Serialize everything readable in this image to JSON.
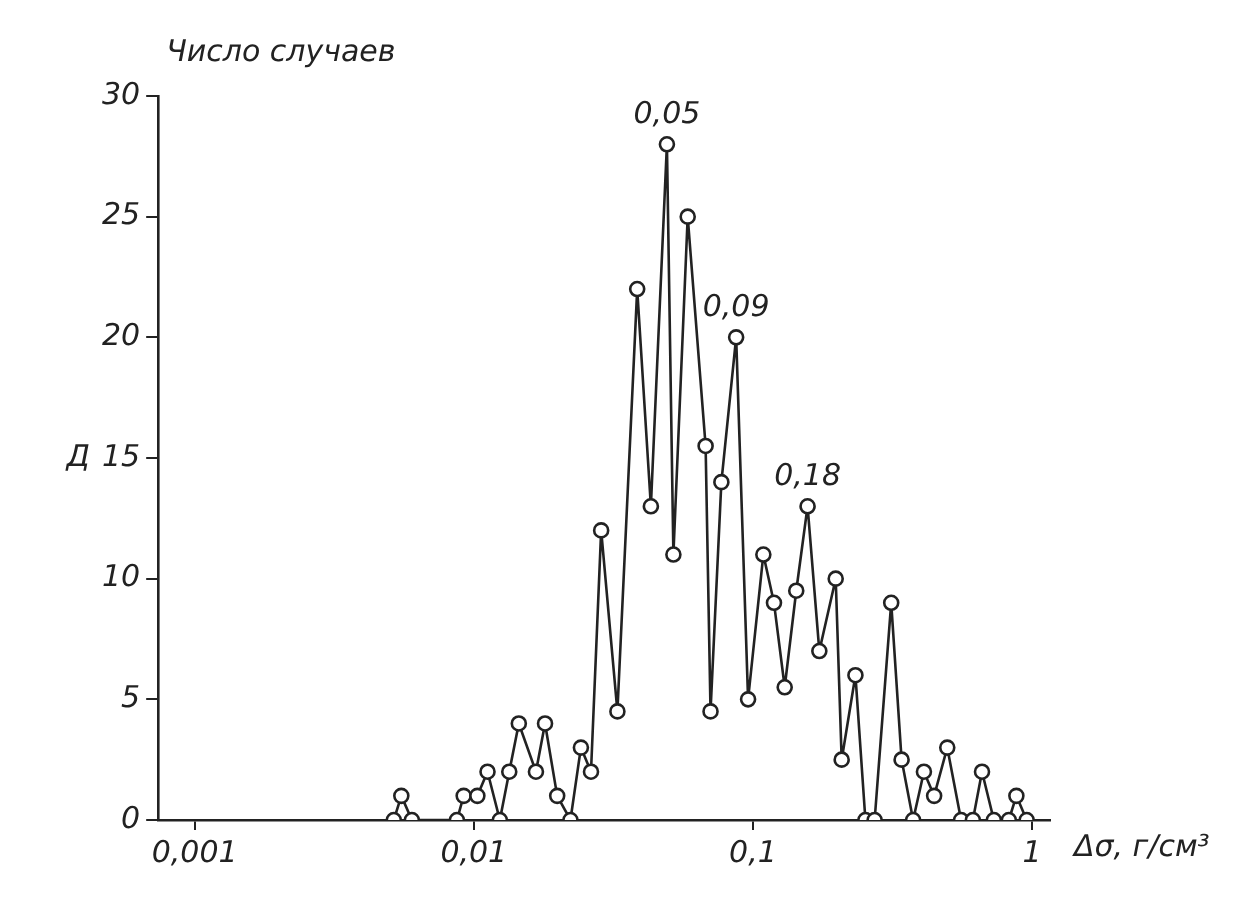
{
  "chart_data": {
    "type": "line",
    "ylabel": "Число случаев",
    "xlabel": "Δσ, г/см³",
    "annotations": [
      "Д",
      {
        "text": "0,05",
        "x": 0.0492,
        "y": 28
      },
      {
        "text": "0,09",
        "x": 0.0871,
        "y": 20
      },
      {
        "text": "0,18",
        "x": 0.157,
        "y": 13
      }
    ],
    "log": "x",
    "xlim": [
      0.00074,
      1.16
    ],
    "ylim": [
      0,
      30
    ],
    "xticks": [
      {
        "value": 0.001,
        "label": "0,001"
      },
      {
        "value": 0.01,
        "label": "0,01"
      },
      {
        "value": 0.1,
        "label": "0,1"
      },
      1
    ],
    "yticks": [
      0,
      5,
      10,
      15,
      20,
      25,
      30
    ],
    "grid": false,
    "legend": false,
    "marker": "circle",
    "line_style": "solid",
    "series": [
      {
        "color": "#222222",
        "x": [
          0.00517,
          0.0055,
          0.006,
          0.0087,
          0.0092,
          0.0103,
          0.0112,
          0.0124,
          0.0134,
          0.0145,
          0.0167,
          0.018,
          0.0199,
          0.0222,
          0.0242,
          0.0263,
          0.0286,
          0.0327,
          0.0385,
          0.0431,
          0.0492,
          0.0519,
          0.0584,
          0.0677,
          0.0705,
          0.0771,
          0.0871,
          0.0961,
          0.109,
          0.119,
          0.13,
          0.143,
          0.157,
          0.173,
          0.198,
          0.208,
          0.233,
          0.253,
          0.273,
          0.313,
          0.341,
          0.375,
          0.41,
          0.446,
          0.497,
          0.557,
          0.614,
          0.662,
          0.73,
          0.826,
          0.879,
          0.957
        ],
        "values": [
          0,
          1,
          0,
          0,
          1,
          1,
          2,
          0,
          2,
          4,
          2,
          4,
          1,
          0,
          3,
          2,
          12,
          4.5,
          22,
          13,
          28,
          11,
          25,
          15.5,
          4.5,
          14,
          20,
          5,
          11,
          9,
          5.5,
          9.5,
          13,
          7,
          10,
          2.5,
          6,
          0,
          0,
          9,
          2.5,
          0,
          2,
          1,
          3,
          0,
          0,
          2,
          0,
          0,
          1,
          0
        ]
      }
    ]
  }
}
